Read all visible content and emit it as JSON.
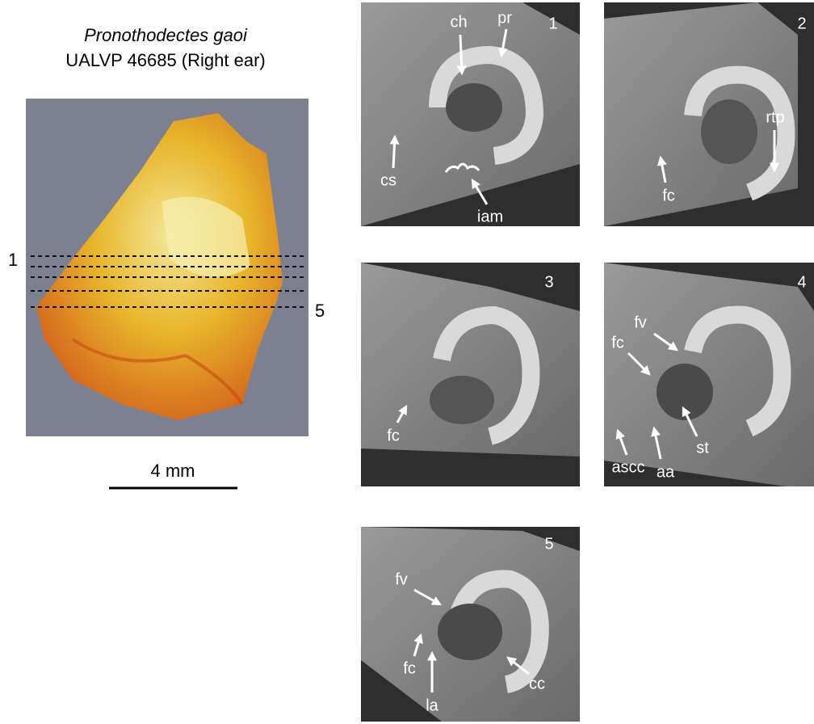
{
  "specimen": {
    "taxon": "Pronothodectes gaoi",
    "catalog": "UALVP 46685 (Right ear)",
    "slice_labels": [
      "1",
      "5"
    ],
    "scale_bar": "4 mm"
  },
  "panels": [
    {
      "number": "1",
      "labels": [
        "ch",
        "pr",
        "cs",
        "iam"
      ]
    },
    {
      "number": "2",
      "labels": [
        "rtp",
        "fc"
      ]
    },
    {
      "number": "3",
      "labels": [
        "fc"
      ]
    },
    {
      "number": "4",
      "labels": [
        "fv",
        "fc",
        "st",
        "ascc",
        "aa"
      ]
    },
    {
      "number": "5",
      "labels": [
        "fv",
        "fc",
        "la",
        "cc"
      ]
    }
  ]
}
